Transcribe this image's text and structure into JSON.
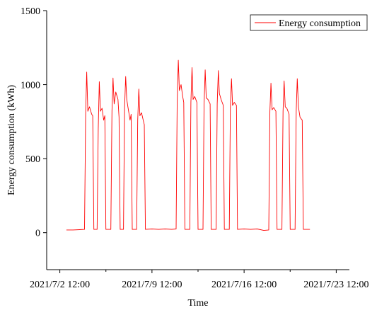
{
  "chart_data": {
    "type": "line",
    "title": "",
    "xlabel": "Time",
    "ylabel": "Energy consumption (kWh)",
    "ylim": [
      -250,
      1500
    ],
    "xlim": [
      "2021-07-01T12:00",
      "2021-07-24T12:00"
    ],
    "yticks": [
      0,
      500,
      1000,
      1500
    ],
    "xticks": [
      {
        "value": "2021-07-02T12:00",
        "label": "2021/7/2 12:00"
      },
      {
        "value": "2021-07-09T12:00",
        "label": "2021/7/9 12:00"
      },
      {
        "value": "2021-07-16T12:00",
        "label": "2021/7/16 12:00"
      },
      {
        "value": "2021-07-23T12:00",
        "label": "2021/7/23 12:00"
      }
    ],
    "x_minor_ticks": [
      "2021-07-06T00:00",
      "2021-07-13T00:00",
      "2021-07-20T00:00"
    ],
    "grid": false,
    "legend": "top-right",
    "line_color": "#ff0000",
    "series": [
      {
        "name": "Energy consumption",
        "points": [
          [
            "2021-07-03T00:00",
            18
          ],
          [
            "2021-07-03T12:00",
            18
          ],
          [
            "2021-07-04T00:00",
            20
          ],
          [
            "2021-07-04T09:00",
            22
          ],
          [
            "2021-07-04T11:00",
            800
          ],
          [
            "2021-07-04T13:00",
            1085
          ],
          [
            "2021-07-04T15:00",
            820
          ],
          [
            "2021-07-04T18:00",
            850
          ],
          [
            "2021-07-04T22:00",
            800
          ],
          [
            "2021-07-05T00:00",
            790
          ],
          [
            "2021-07-05T02:00",
            22
          ],
          [
            "2021-07-05T08:00",
            22
          ],
          [
            "2021-07-05T10:00",
            700
          ],
          [
            "2021-07-05T12:00",
            1020
          ],
          [
            "2021-07-05T14:00",
            820
          ],
          [
            "2021-07-05T17:00",
            840
          ],
          [
            "2021-07-05T20:00",
            760
          ],
          [
            "2021-07-05T22:00",
            790
          ],
          [
            "2021-07-06T00:00",
            22
          ],
          [
            "2021-07-06T09:00",
            22
          ],
          [
            "2021-07-06T11:00",
            820
          ],
          [
            "2021-07-06T13:00",
            1045
          ],
          [
            "2021-07-06T15:00",
            870
          ],
          [
            "2021-07-06T18:00",
            950
          ],
          [
            "2021-07-06T22:00",
            900
          ],
          [
            "2021-07-07T00:00",
            780
          ],
          [
            "2021-07-07T02:00",
            22
          ],
          [
            "2021-07-07T08:00",
            22
          ],
          [
            "2021-07-07T10:00",
            840
          ],
          [
            "2021-07-07T12:00",
            1055
          ],
          [
            "2021-07-07T14:00",
            900
          ],
          [
            "2021-07-07T17:00",
            830
          ],
          [
            "2021-07-07T20:00",
            760
          ],
          [
            "2021-07-07T22:00",
            800
          ],
          [
            "2021-07-08T00:00",
            22
          ],
          [
            "2021-07-08T08:00",
            22
          ],
          [
            "2021-07-08T10:00",
            760
          ],
          [
            "2021-07-08T12:00",
            970
          ],
          [
            "2021-07-08T14:00",
            790
          ],
          [
            "2021-07-08T17:00",
            810
          ],
          [
            "2021-07-08T20:00",
            760
          ],
          [
            "2021-07-08T22:00",
            730
          ],
          [
            "2021-07-09T00:00",
            22
          ],
          [
            "2021-07-09T12:00",
            25
          ],
          [
            "2021-07-10T00:00",
            22
          ],
          [
            "2021-07-10T12:00",
            25
          ],
          [
            "2021-07-11T00:00",
            22
          ],
          [
            "2021-07-11T08:00",
            25
          ],
          [
            "2021-07-11T10:00",
            880
          ],
          [
            "2021-07-11T12:00",
            1165
          ],
          [
            "2021-07-11T14:00",
            960
          ],
          [
            "2021-07-11T17:00",
            1000
          ],
          [
            "2021-07-11T20:00",
            920
          ],
          [
            "2021-07-11T22:00",
            880
          ],
          [
            "2021-07-12T00:00",
            22
          ],
          [
            "2021-07-12T09:00",
            22
          ],
          [
            "2021-07-12T11:00",
            880
          ],
          [
            "2021-07-12T13:00",
            1115
          ],
          [
            "2021-07-12T15:00",
            900
          ],
          [
            "2021-07-12T18:00",
            920
          ],
          [
            "2021-07-12T22:00",
            880
          ],
          [
            "2021-07-13T00:00",
            22
          ],
          [
            "2021-07-13T09:00",
            22
          ],
          [
            "2021-07-13T11:00",
            860
          ],
          [
            "2021-07-13T13:00",
            1100
          ],
          [
            "2021-07-13T15:00",
            910
          ],
          [
            "2021-07-13T18:00",
            900
          ],
          [
            "2021-07-13T22:00",
            870
          ],
          [
            "2021-07-14T00:00",
            22
          ],
          [
            "2021-07-14T09:00",
            22
          ],
          [
            "2021-07-14T11:00",
            870
          ],
          [
            "2021-07-14T13:00",
            1095
          ],
          [
            "2021-07-14T15:00",
            940
          ],
          [
            "2021-07-14T18:00",
            900
          ],
          [
            "2021-07-14T22:00",
            860
          ],
          [
            "2021-07-15T00:00",
            22
          ],
          [
            "2021-07-15T09:00",
            22
          ],
          [
            "2021-07-15T11:00",
            840
          ],
          [
            "2021-07-15T13:00",
            1040
          ],
          [
            "2021-07-15T15:00",
            860
          ],
          [
            "2021-07-15T18:00",
            880
          ],
          [
            "2021-07-15T22:00",
            860
          ],
          [
            "2021-07-16T00:00",
            22
          ],
          [
            "2021-07-16T12:00",
            25
          ],
          [
            "2021-07-17T00:00",
            22
          ],
          [
            "2021-07-17T12:00",
            25
          ],
          [
            "2021-07-18T00:00",
            15
          ],
          [
            "2021-07-18T09:00",
            18
          ],
          [
            "2021-07-18T11:00",
            820
          ],
          [
            "2021-07-18T13:00",
            1010
          ],
          [
            "2021-07-18T15:00",
            830
          ],
          [
            "2021-07-18T18:00",
            845
          ],
          [
            "2021-07-18T22:00",
            820
          ],
          [
            "2021-07-19T00:00",
            22
          ],
          [
            "2021-07-19T09:00",
            22
          ],
          [
            "2021-07-19T11:00",
            820
          ],
          [
            "2021-07-19T13:00",
            1025
          ],
          [
            "2021-07-19T15:00",
            850
          ],
          [
            "2021-07-19T18:00",
            840
          ],
          [
            "2021-07-19T22:00",
            800
          ],
          [
            "2021-07-20T00:00",
            22
          ],
          [
            "2021-07-20T09:00",
            22
          ],
          [
            "2021-07-20T11:00",
            820
          ],
          [
            "2021-07-20T13:00",
            1040
          ],
          [
            "2021-07-20T15:00",
            850
          ],
          [
            "2021-07-20T18:00",
            780
          ],
          [
            "2021-07-20T22:00",
            760
          ],
          [
            "2021-07-21T00:00",
            22
          ],
          [
            "2021-07-21T12:00",
            22
          ]
        ]
      }
    ]
  }
}
